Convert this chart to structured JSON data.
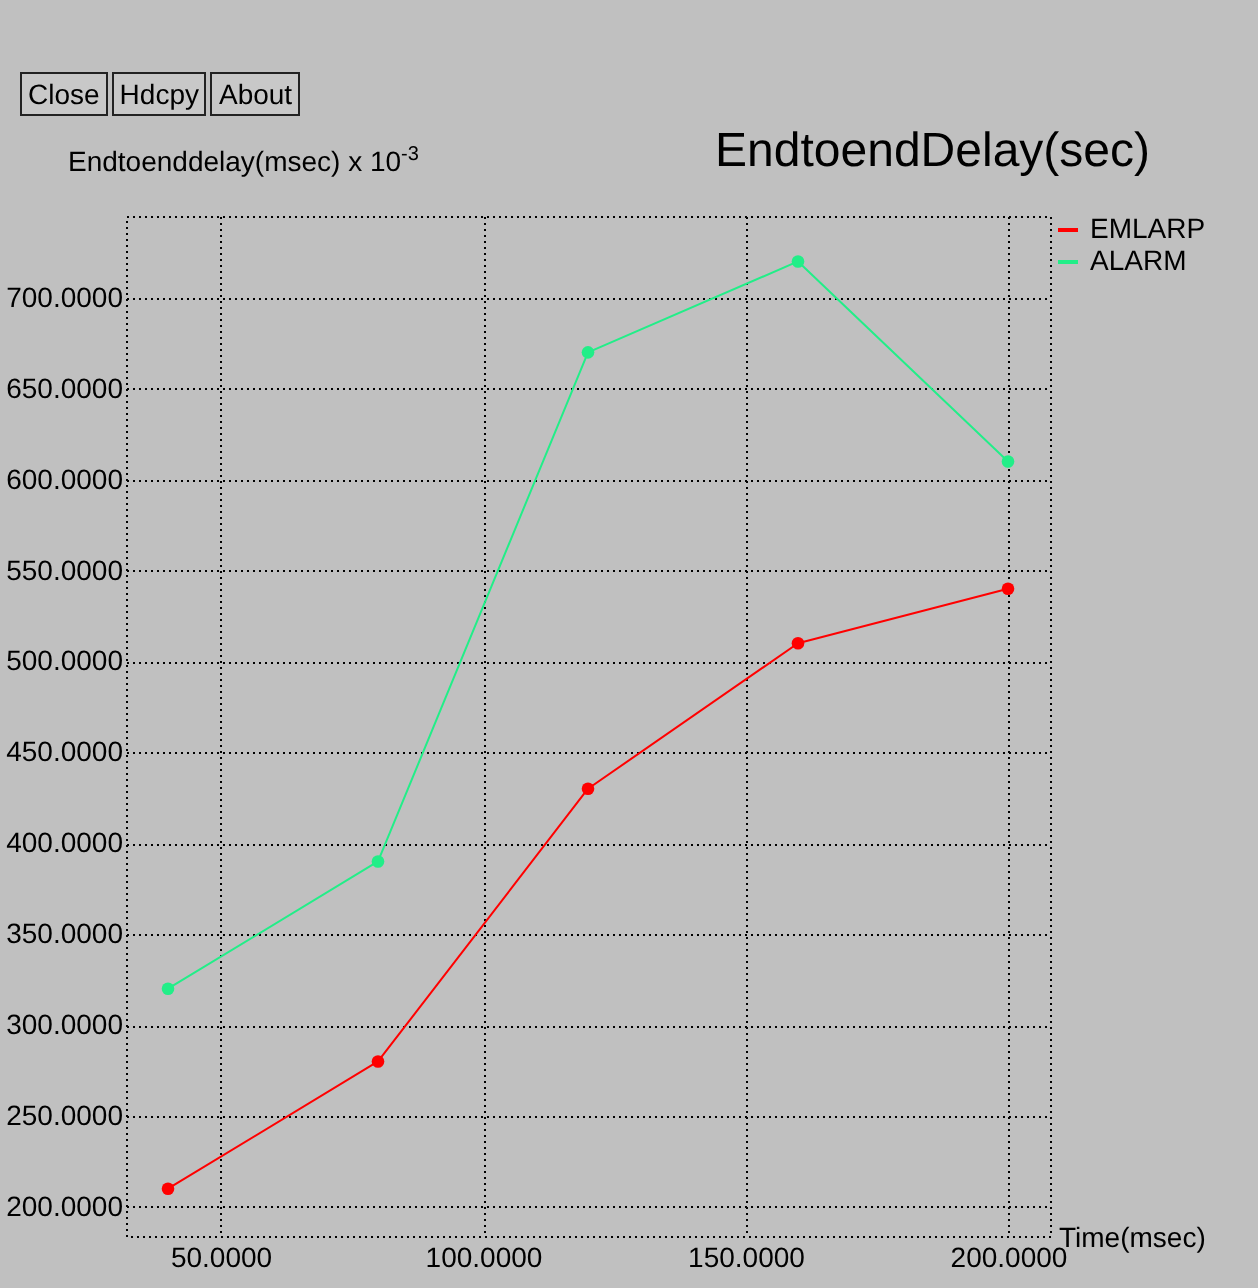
{
  "chart_data": {
    "type": "line",
    "title": "EndtoendDelay(sec)",
    "xlabel": "Time(msec)",
    "ylabel": "Endtoenddelay(msec) x 10$^{-3}$",
    "annotations": [
      "Close",
      "Hdcpy",
      "About"
    ],
    "x": [
      40,
      80,
      120,
      160,
      200
    ],
    "series": [
      {
        "name": "EMLARP",
        "color": "#ff0000",
        "values": [
          210,
          280,
          430,
          510,
          540
        ]
      },
      {
        "name": "ALARM",
        "color": "#22ee88",
        "values": [
          320,
          390,
          670,
          720,
          610
        ]
      }
    ],
    "xlim": [
      32,
      208
    ],
    "ylim": [
      184,
      745
    ],
    "xticks": [
      {
        "value": 50,
        "label": "50.0000"
      },
      {
        "value": 100,
        "label": "100.0000"
      },
      {
        "value": 150,
        "label": "150.0000"
      },
      {
        "value": 200,
        "label": "200.0000"
      }
    ],
    "yticks": [
      {
        "value": 200,
        "label": "200.0000"
      },
      {
        "value": 250,
        "label": "250.0000"
      },
      {
        "value": 300,
        "label": "300.0000"
      },
      {
        "value": 350,
        "label": "350.0000"
      },
      {
        "value": 400,
        "label": "400.0000"
      },
      {
        "value": 450,
        "label": "450.0000"
      },
      {
        "value": 500,
        "label": "500.0000"
      },
      {
        "value": 550,
        "label": "550.0000"
      },
      {
        "value": 600,
        "label": "600.0000"
      },
      {
        "value": 650,
        "label": "650.0000"
      },
      {
        "value": 700,
        "label": "700.0000"
      }
    ],
    "grid": true,
    "legend": "top right",
    "marker": "circle",
    "line_style": "solid"
  }
}
